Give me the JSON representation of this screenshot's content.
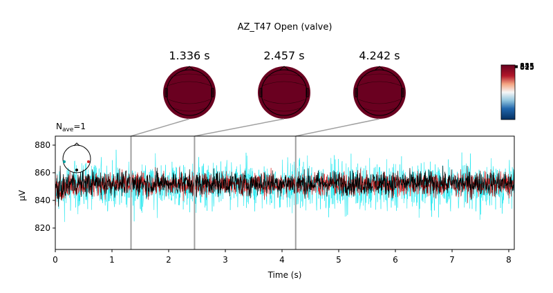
{
  "title": "AZ_T47 Open (valve)",
  "colors": {
    "trace_main": "#000000",
    "trace_red": "#d62728",
    "trace_cyan": "#00e5ee",
    "head_fill": "#6a0020",
    "marker_line": "#a0a0a0"
  },
  "topomaps": [
    {
      "time_label": "1.336 s",
      "time": 1.336
    },
    {
      "time_label": "2.457 s",
      "time": 2.457
    },
    {
      "time_label": "4.242 s",
      "time": 4.242
    }
  ],
  "colorbar": {
    "tick_labels": [
      "845",
      "835",
      "825",
      "815"
    ],
    "cmap": "RdBu_r"
  },
  "nave_label": "N",
  "nave_sub": "ave",
  "nave_value": "=1",
  "chart_data": {
    "type": "line",
    "xlabel": "Time (s)",
    "ylabel": "µV",
    "xlim": [
      0,
      8.1
    ],
    "ylim": [
      804,
      886
    ],
    "xticks": [
      0,
      1,
      2,
      3,
      4,
      5,
      6,
      7,
      8
    ],
    "yticks": [
      820,
      840,
      860,
      880
    ],
    "series": [
      {
        "color_key": "trace_cyan",
        "mean": 850,
        "spread": 10
      },
      {
        "color_key": "trace_red",
        "mean": 851,
        "spread": 5
      },
      {
        "color_key": "trace_main",
        "mean": 852,
        "spread": 5
      }
    ],
    "markers": [
      1.336,
      2.457,
      4.242
    ]
  }
}
